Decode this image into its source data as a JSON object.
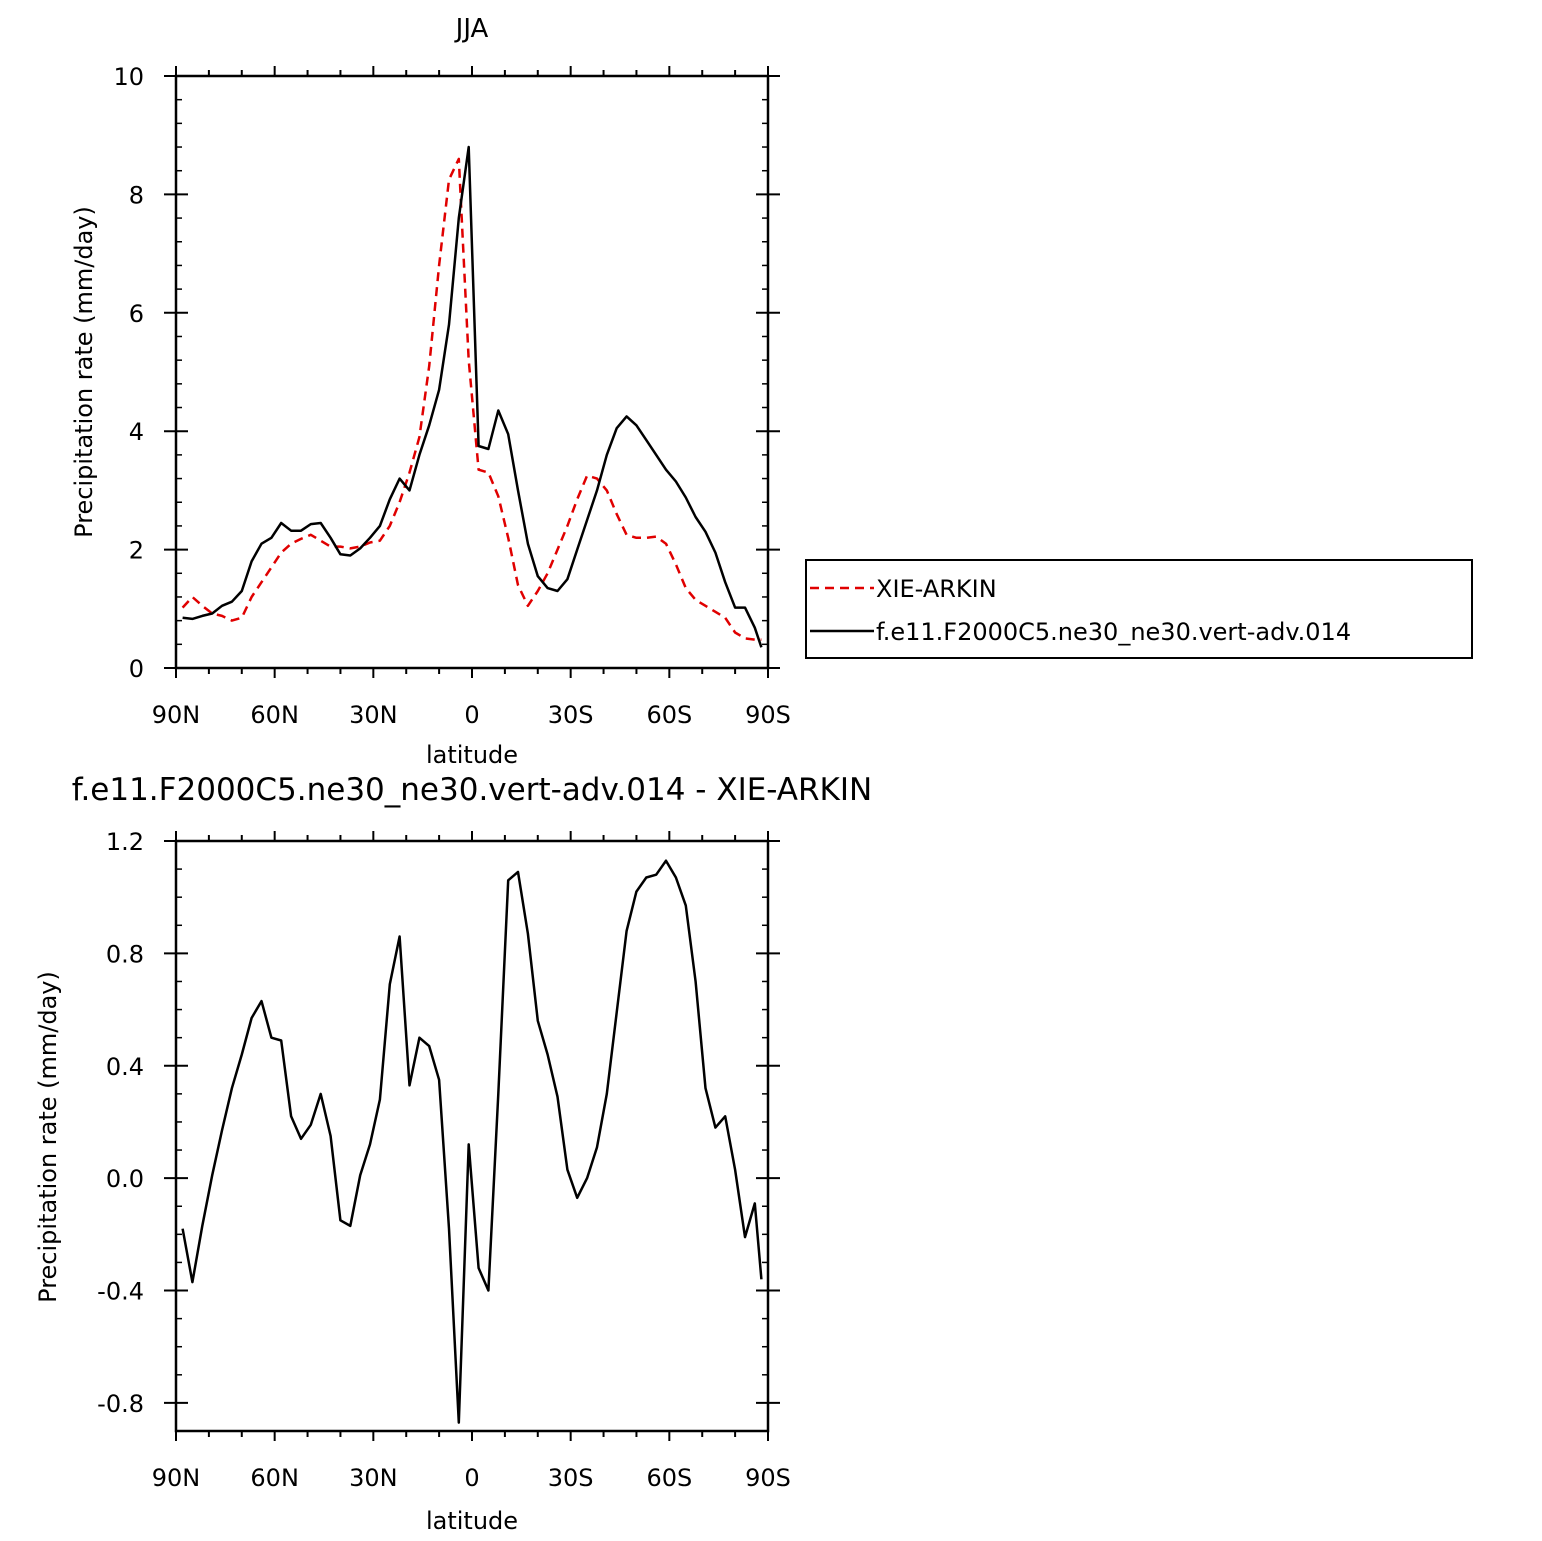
{
  "chart_data": [
    {
      "type": "line",
      "title": "JJA",
      "xlabel": "latitude",
      "ylabel": "Precipitation rate (mm/day)",
      "xlim": [
        90,
        -90
      ],
      "ylim": [
        0,
        10
      ],
      "x_ticks": [
        90,
        60,
        30,
        0,
        -30,
        -60,
        -90
      ],
      "x_tick_labels": [
        "90N",
        "60N",
        "30N",
        "0",
        "30S",
        "60S",
        "90S"
      ],
      "y_ticks": [
        0,
        2,
        4,
        6,
        8,
        10
      ],
      "y_tick_labels": [
        "0",
        "2",
        "4",
        "6",
        "8",
        "10"
      ],
      "legend_position": "right",
      "series": [
        {
          "name": "XIE-ARKIN",
          "color": "#e00000",
          "dash": "dashed",
          "x": [
            88,
            85,
            82,
            79,
            76,
            73,
            70,
            67,
            64,
            61,
            58,
            55,
            52,
            49,
            46,
            43,
            40,
            37,
            34,
            31,
            28,
            25,
            22,
            19,
            16,
            13,
            10,
            7,
            4,
            1,
            -2,
            -5,
            -8,
            -11,
            -14,
            -17,
            -20,
            -23,
            -26,
            -29,
            -32,
            -35,
            -38,
            -41,
            -44,
            -47,
            -50,
            -53,
            -56,
            -59,
            -62,
            -65,
            -68,
            -71,
            -74,
            -77,
            -80,
            -83,
            -86,
            -88
          ],
          "values": [
            1.02,
            1.2,
            1.05,
            0.92,
            0.88,
            0.8,
            0.85,
            1.2,
            1.45,
            1.7,
            1.95,
            2.1,
            2.18,
            2.25,
            2.15,
            2.05,
            2.05,
            2.02,
            2.05,
            2.12,
            2.15,
            2.4,
            2.8,
            3.3,
            3.9,
            5.1,
            6.8,
            8.25,
            8.6,
            5.2,
            3.35,
            3.3,
            2.9,
            2.2,
            1.4,
            1.05,
            1.3,
            1.6,
            2.0,
            2.4,
            2.85,
            3.25,
            3.2,
            3.0,
            2.6,
            2.25,
            2.2,
            2.2,
            2.22,
            2.1,
            1.75,
            1.35,
            1.15,
            1.05,
            0.95,
            0.85,
            0.6,
            0.5,
            0.48,
            0.48
          ]
        },
        {
          "name": "f.e11.F2000C5.ne30_ne30.vert-adv.014",
          "color": "#000000",
          "dash": "solid",
          "x": [
            88,
            85,
            82,
            79,
            76,
            73,
            70,
            67,
            64,
            61,
            58,
            55,
            52,
            49,
            46,
            43,
            40,
            37,
            34,
            31,
            28,
            25,
            22,
            19,
            16,
            13,
            10,
            7,
            4,
            1,
            -2,
            -5,
            -8,
            -11,
            -14,
            -17,
            -20,
            -23,
            -26,
            -29,
            -32,
            -35,
            -38,
            -41,
            -44,
            -47,
            -50,
            -53,
            -56,
            -59,
            -62,
            -65,
            -68,
            -71,
            -74,
            -77,
            -80,
            -83,
            -86,
            -88
          ],
          "values": [
            0.85,
            0.83,
            0.88,
            0.92,
            1.05,
            1.12,
            1.3,
            1.8,
            2.1,
            2.2,
            2.45,
            2.32,
            2.32,
            2.43,
            2.45,
            2.2,
            1.92,
            1.9,
            2.02,
            2.2,
            2.4,
            2.85,
            3.2,
            3.0,
            3.6,
            4.1,
            4.7,
            5.8,
            7.6,
            8.8,
            3.75,
            3.7,
            4.35,
            3.95,
            3.0,
            2.1,
            1.55,
            1.35,
            1.3,
            1.5,
            2.0,
            2.5,
            3.0,
            3.6,
            4.05,
            4.25,
            4.1,
            3.85,
            3.6,
            3.35,
            3.15,
            2.88,
            2.55,
            2.3,
            1.95,
            1.45,
            1.02,
            1.02,
            0.68,
            0.35
          ]
        }
      ]
    },
    {
      "type": "line",
      "title": "f.e11.F2000C5.ne30_ne30.vert-adv.014 - XIE-ARKIN",
      "xlabel": "latitude",
      "ylabel": "Precipitation rate (mm/day)",
      "xlim": [
        90,
        -90
      ],
      "ylim": [
        -0.9,
        1.2
      ],
      "x_ticks": [
        90,
        60,
        30,
        0,
        -30,
        -60,
        -90
      ],
      "x_tick_labels": [
        "90N",
        "60N",
        "30N",
        "0",
        "30S",
        "60S",
        "90S"
      ],
      "y_ticks": [
        -0.8,
        -0.4,
        0.0,
        0.4,
        0.8,
        1.2
      ],
      "y_tick_labels": [
        "-0.8",
        "-0.4",
        "0.0",
        "0.4",
        "0.8",
        "1.2"
      ],
      "series": [
        {
          "color": "#000000",
          "dash": "solid",
          "x": [
            88,
            85,
            82,
            79,
            76,
            73,
            70,
            67,
            64,
            61,
            58,
            55,
            52,
            49,
            46,
            43,
            40,
            37,
            34,
            31,
            28,
            25,
            22,
            19,
            16,
            13,
            10,
            7,
            4,
            1,
            -2,
            -5,
            -8,
            -11,
            -14,
            -17,
            -20,
            -23,
            -26,
            -29,
            -32,
            -35,
            -38,
            -41,
            -44,
            -47,
            -50,
            -53,
            -56,
            -59,
            -62,
            -65,
            -68,
            -71,
            -74,
            -77,
            -80,
            -83,
            -86,
            -88
          ],
          "values": [
            -0.18,
            -0.37,
            -0.17,
            0.01,
            0.17,
            0.32,
            0.44,
            0.57,
            0.63,
            0.5,
            0.49,
            0.22,
            0.14,
            0.19,
            0.3,
            0.15,
            -0.15,
            -0.17,
            0.01,
            0.12,
            0.28,
            0.69,
            0.86,
            0.33,
            0.5,
            0.47,
            0.35,
            -0.18,
            -0.87,
            0.12,
            -0.32,
            -0.4,
            0.3,
            1.06,
            1.09,
            0.87,
            0.56,
            0.44,
            0.29,
            0.03,
            -0.07,
            0.0,
            0.11,
            0.3,
            0.59,
            0.88,
            1.02,
            1.07,
            1.08,
            1.13,
            1.07,
            0.97,
            0.7,
            0.32,
            0.18,
            0.22,
            0.03,
            -0.21,
            -0.09,
            -0.36
          ]
        }
      ]
    }
  ]
}
